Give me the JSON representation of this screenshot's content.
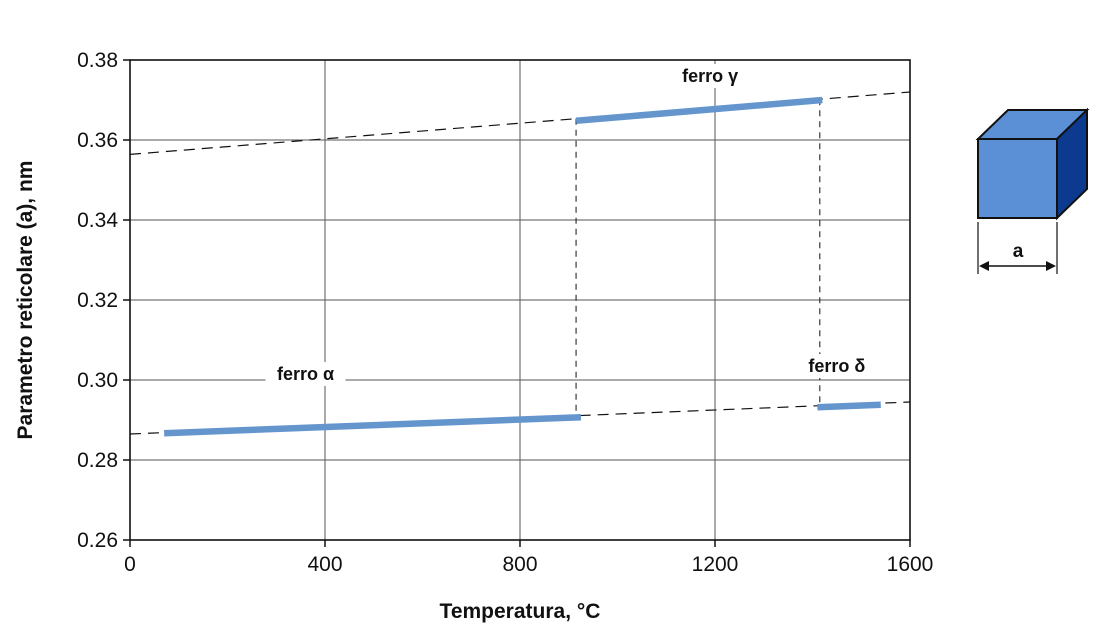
{
  "chart_data": {
    "type": "line",
    "title": "",
    "xlabel": "Temperatura, °C",
    "ylabel": "Parametro reticolare (a), nm",
    "xlim": [
      0,
      1600
    ],
    "ylim": [
      0.26,
      0.38
    ],
    "xticks": [
      0,
      400,
      800,
      1200,
      1600
    ],
    "yticks": [
      0.26,
      0.28,
      0.3,
      0.32,
      0.34,
      0.36,
      0.38
    ],
    "x_tick_labels": [
      "0",
      "400",
      "800",
      "1200",
      "1600"
    ],
    "y_tick_labels": [
      "0.26",
      "0.28",
      "0.30",
      "0.32",
      "0.34",
      "0.36",
      "0.38"
    ],
    "grid": true,
    "series": [
      {
        "name": "ferro α",
        "x": [
          70,
          925
        ],
        "y": [
          0.2867,
          0.2907
        ],
        "color": "#6495cd"
      },
      {
        "name": "ferro γ",
        "x": [
          915,
          1420
        ],
        "y": [
          0.3648,
          0.37
        ],
        "color": "#6495cd"
      },
      {
        "name": "ferro δ",
        "x": [
          1410,
          1540
        ],
        "y": [
          0.2932,
          0.2938
        ],
        "color": "#6495cd"
      }
    ],
    "extrapolation_lines": [
      {
        "x": [
          0,
          1600
        ],
        "y": [
          0.2865,
          0.2945
        ]
      },
      {
        "x": [
          0,
          1600
        ],
        "y": [
          0.3564,
          0.372
        ]
      }
    ],
    "transitions_x": [
      915,
      1415
    ],
    "inset": {
      "label": "a",
      "face_color": "#5b8fd6",
      "side_color": "#0b3a8e"
    }
  }
}
